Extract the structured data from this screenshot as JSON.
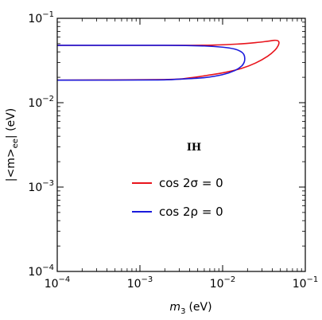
{
  "chart_data": {
    "type": "line",
    "xscale": "log",
    "yscale": "log",
    "xlim": [
      0.0001,
      0.1
    ],
    "ylim": [
      0.0001,
      0.1
    ],
    "xlabel_base": "m",
    "xlabel_sub": "3",
    "xlabel_unit": "(eV)",
    "ylabel_pre": "|<m>",
    "ylabel_sub": "ee",
    "ylabel_post": "| (eV)",
    "annotation": "IH",
    "xticks": [
      {
        "value": 0.0001,
        "base": "10",
        "exp": "−4"
      },
      {
        "value": 0.001,
        "base": "10",
        "exp": "−3"
      },
      {
        "value": 0.01,
        "base": "10",
        "exp": "−2"
      },
      {
        "value": 0.1,
        "base": "10",
        "exp": "−1"
      }
    ],
    "yticks": [
      {
        "value": 0.0001,
        "base": "10",
        "exp": "−4"
      },
      {
        "value": 0.001,
        "base": "10",
        "exp": "−3"
      },
      {
        "value": 0.01,
        "base": "10",
        "exp": "−2"
      },
      {
        "value": 0.1,
        "base": "10",
        "exp": "−1"
      }
    ],
    "legend": [
      {
        "label": "cos 2σ = 0",
        "color": "#e8141c"
      },
      {
        "label": "cos 2ρ = 0",
        "color": "#1a1adc"
      }
    ],
    "series": [
      {
        "color": "#e8141c",
        "x": [
          0.0001,
          0.003,
          0.008,
          0.015,
          0.025,
          0.035,
          0.042,
          0.046,
          0.048,
          0.047,
          0.043,
          0.035,
          0.025,
          0.017,
          0.011,
          0.007,
          0.004,
          0.002,
          0.0001
        ],
        "y": [
          0.0478,
          0.0478,
          0.0482,
          0.0495,
          0.0515,
          0.0535,
          0.0548,
          0.0545,
          0.052,
          0.0475,
          0.042,
          0.0355,
          0.0295,
          0.0255,
          0.023,
          0.0213,
          0.0197,
          0.0188,
          0.0185
        ]
      },
      {
        "color": "#1a1adc",
        "x": [
          0.0001,
          0.002,
          0.006,
          0.01,
          0.014,
          0.0165,
          0.018,
          0.0185,
          0.0183,
          0.017,
          0.014,
          0.01,
          0.006,
          0.003,
          0.0015,
          0.0001
        ],
        "y": [
          0.0478,
          0.0478,
          0.047,
          0.0455,
          0.0432,
          0.0405,
          0.0375,
          0.034,
          0.0305,
          0.0272,
          0.024,
          0.0215,
          0.0198,
          0.019,
          0.0186,
          0.0185
        ]
      }
    ]
  }
}
